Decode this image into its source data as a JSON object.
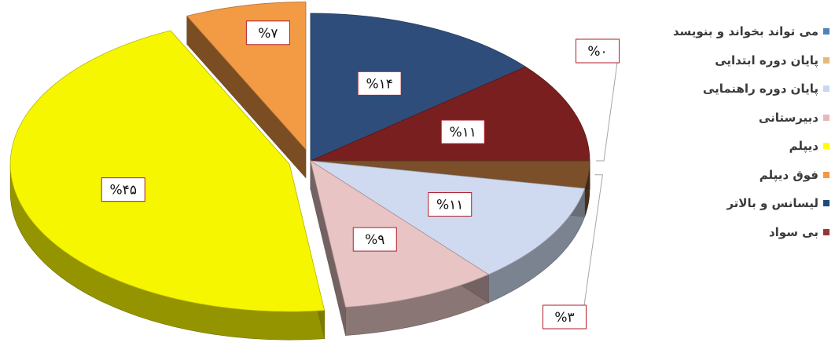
{
  "chart_data": {
    "type": "pie",
    "title": "",
    "legend_position": "right",
    "slices": [
      {
        "name": "می تواند بخواند و بنویسد",
        "value": 14,
        "label": "%۱۴",
        "color": "#2f4d7a",
        "exploded": false
      },
      {
        "name": "بی سواد",
        "value": 11,
        "label": "%۱۱",
        "color": "#7a1f1f",
        "exploded": false
      },
      {
        "name": "پایان دوره ابتدایی",
        "value": 0,
        "label": "%۰",
        "color": "#c9a071",
        "exploded": false
      },
      {
        "name": "پایان دوره راهنمایی",
        "value": 3,
        "label": "%۳",
        "color": "#7a4f2a",
        "exploded": false
      },
      {
        "name": "لیسانس و بالاتر",
        "value": 11,
        "label": "%۱۱",
        "color": "#cfdaf0",
        "exploded": false
      },
      {
        "name": "دبیرستانی",
        "value": 9,
        "label": "%۹",
        "color": "#e8c4c4",
        "exploded": false
      },
      {
        "name": "دیپلم",
        "value": 45,
        "label": "%۴۵",
        "color": "#f6f600",
        "exploded": true
      },
      {
        "name": "فوق دیپلم",
        "value": 7,
        "label": "%۷",
        "color": "#f39a45",
        "exploded": true
      }
    ],
    "legend": [
      {
        "label": "می تواند بخواند و بنویسد",
        "color": "#4f81bd"
      },
      {
        "label": "پایان دوره ابتدایی",
        "color": "#e6b97a"
      },
      {
        "label": "پایان دوره راهنمایی",
        "color": "#c6d9f1"
      },
      {
        "label": "دبیرستانی",
        "color": "#e6b9b8"
      },
      {
        "label": "دیپلم",
        "color": "#ffff00"
      },
      {
        "label": "فوق دیپلم",
        "color": "#f79646"
      },
      {
        "label": "لیسانس و بالاتر",
        "color": "#1f497d"
      },
      {
        "label": "بی سواد",
        "color": "#953735"
      }
    ]
  }
}
